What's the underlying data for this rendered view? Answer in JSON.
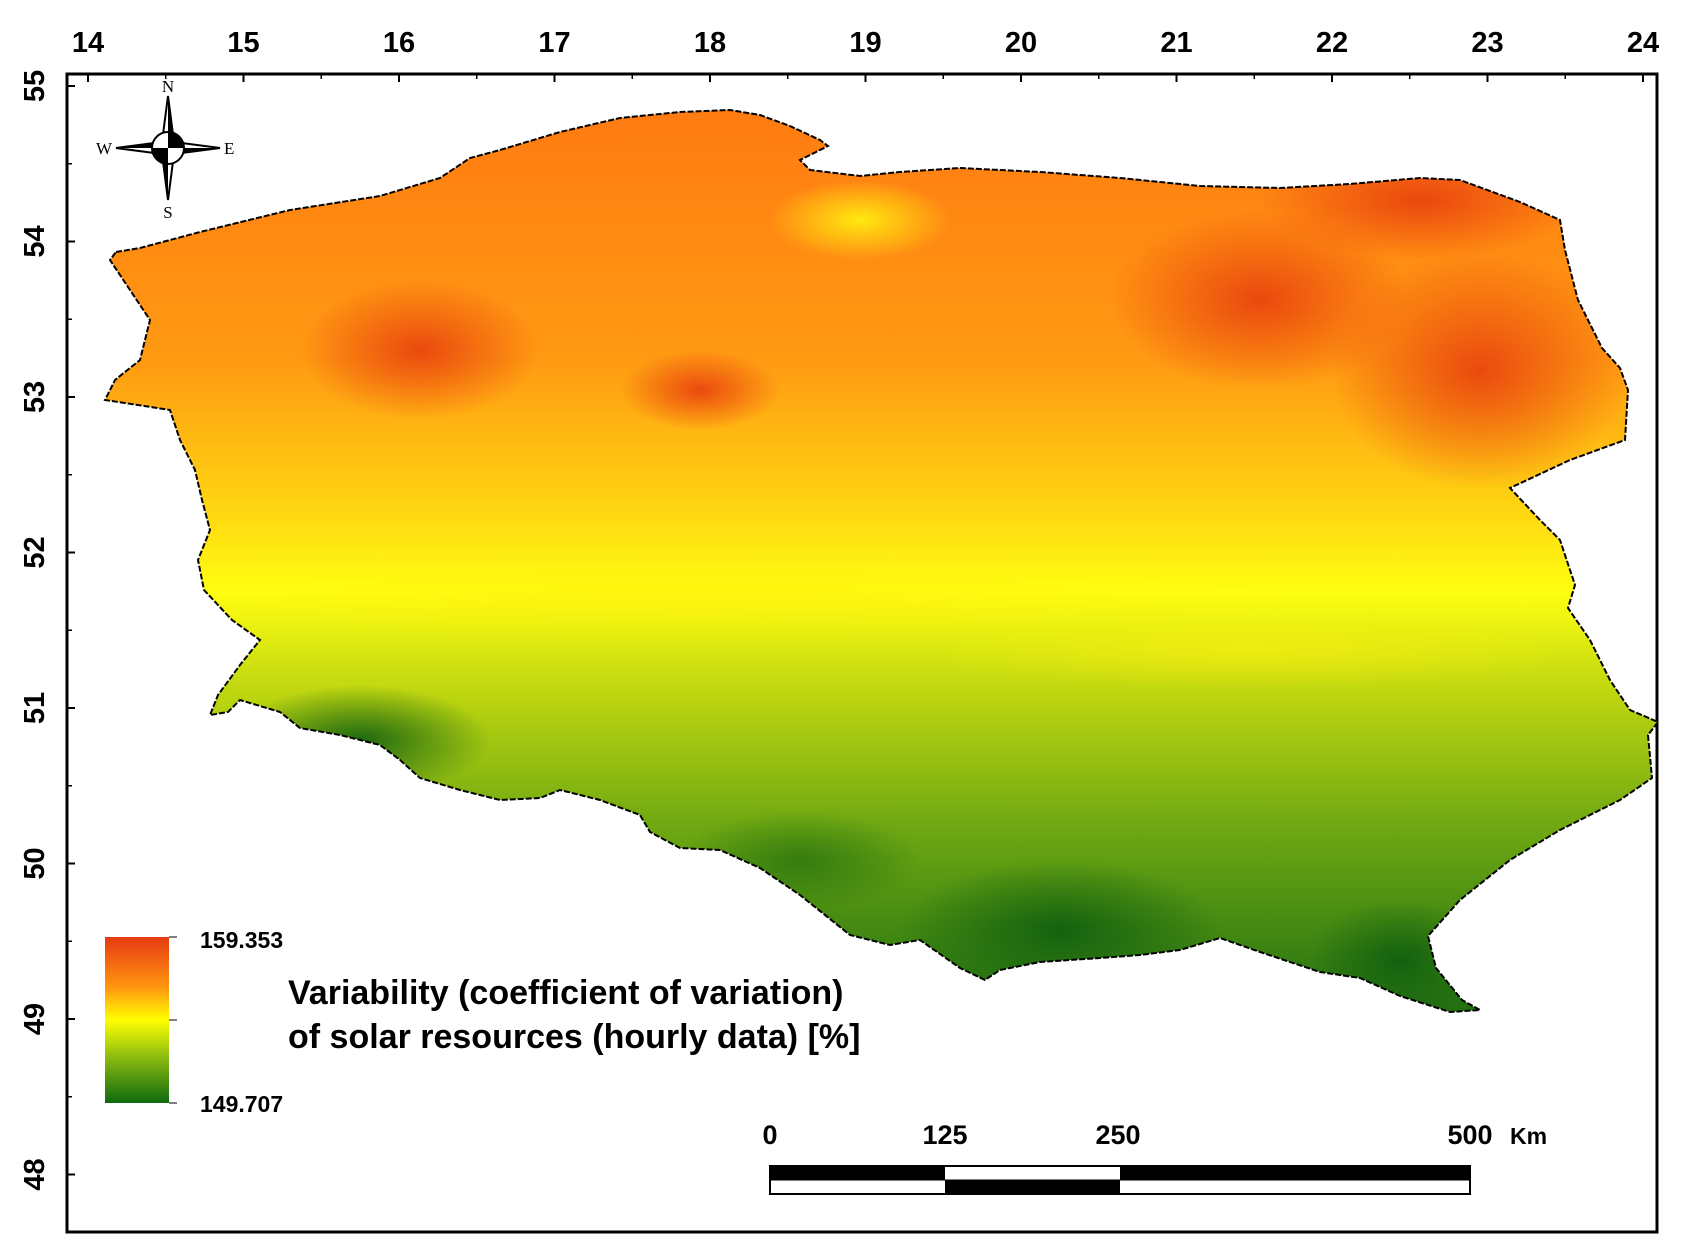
{
  "map": {
    "x_ticks": [
      "14",
      "15",
      "16",
      "17",
      "18",
      "19",
      "20",
      "21",
      "22",
      "23",
      "24"
    ],
    "y_ticks": [
      "55",
      "54",
      "53",
      "52",
      "51",
      "50",
      "49",
      "48"
    ],
    "compass": {
      "north": "N",
      "south": "S",
      "east": "E",
      "west": "W"
    },
    "legend": {
      "max_label": "159.353",
      "min_label": "149.707",
      "title_line1": "Variability (coefficient of variation)",
      "title_line2": "of solar resources (hourly data) [%]",
      "colors": [
        "#e63a12",
        "#ff8c10",
        "#ffff00",
        "#8dbe10",
        "#106a10"
      ]
    },
    "scale_bar": {
      "labels": [
        "0",
        "125",
        "250",
        "500"
      ],
      "unit": "Km"
    }
  }
}
